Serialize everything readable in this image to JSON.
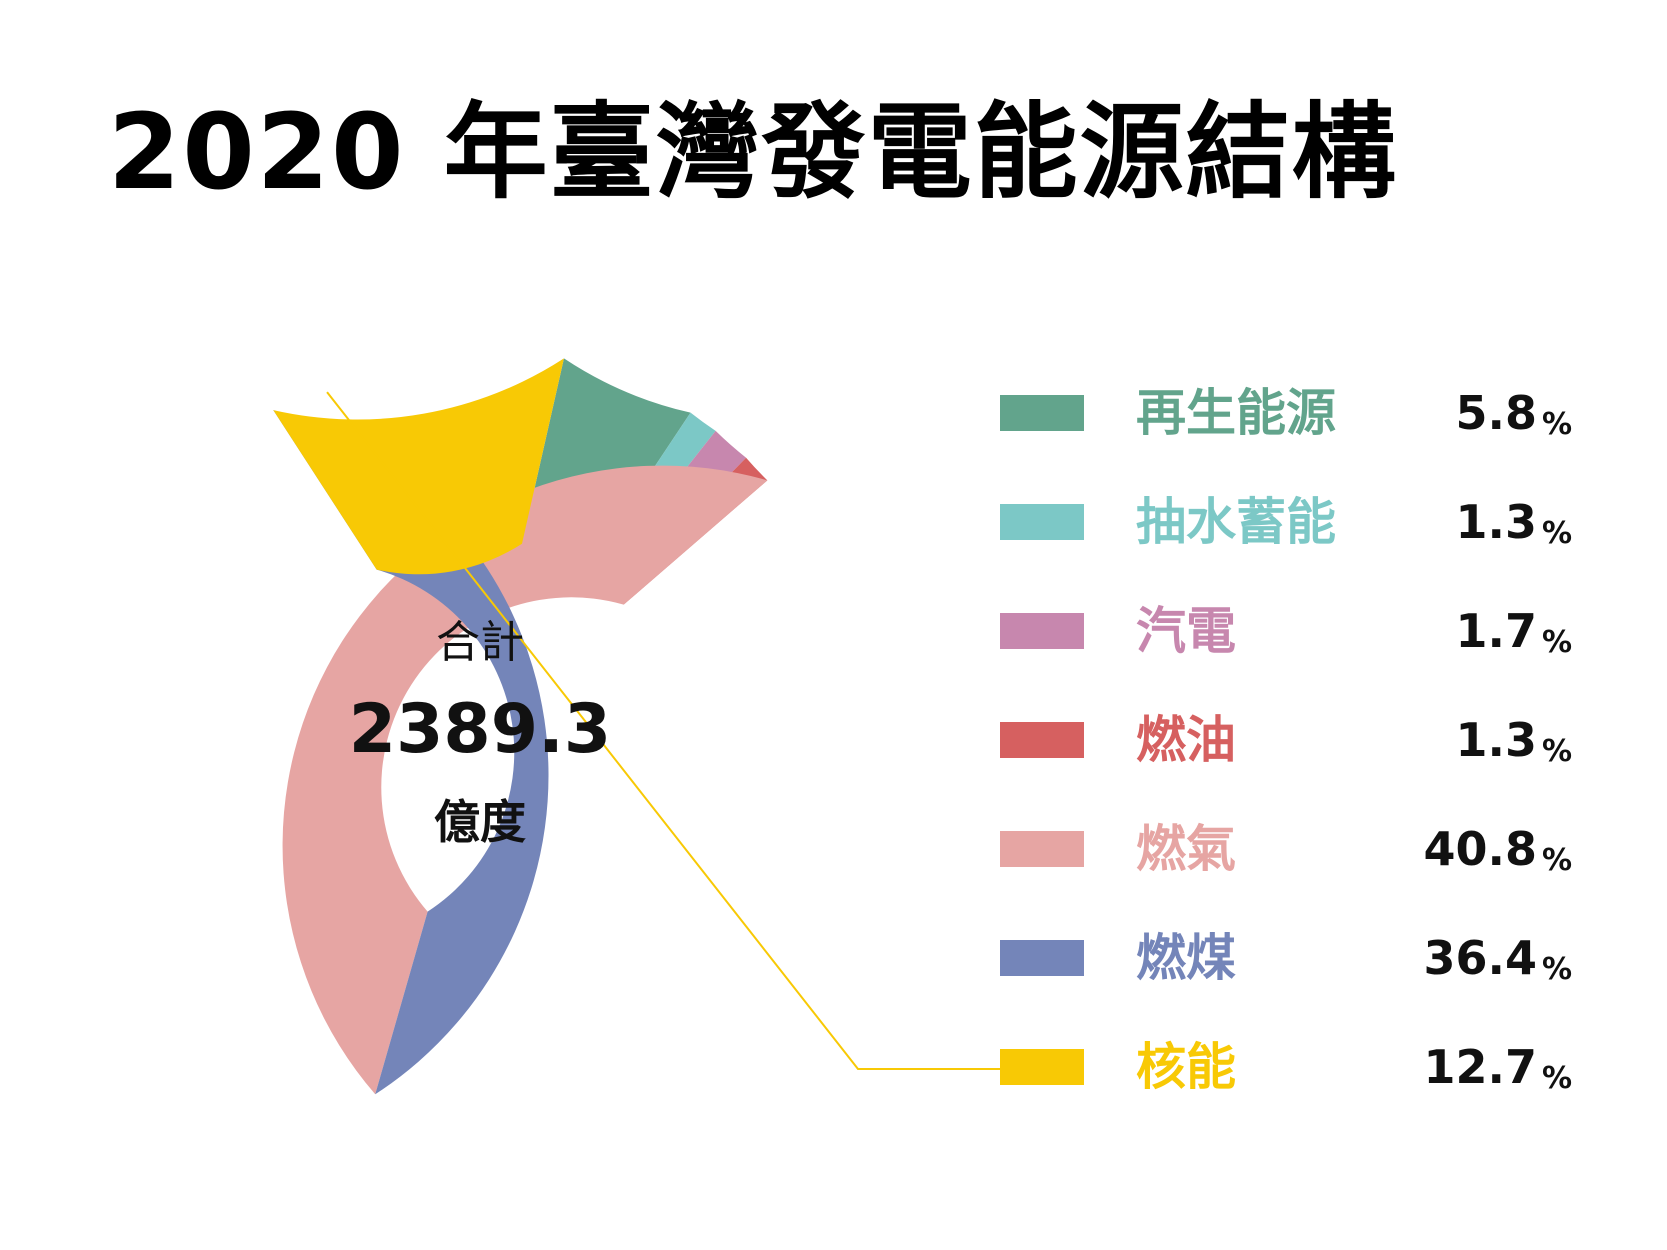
{
  "title": "2020 年臺灣發電能源結構",
  "center": {
    "label": "合計",
    "value": "2389.3",
    "unit": "億度"
  },
  "percent_sign": "%",
  "chart_data": {
    "type": "pie",
    "title": "2020 年臺灣發電能源結構",
    "total": 2389.3,
    "total_unit": "億度",
    "slices": [
      {
        "name": "再生能源",
        "value": 5.8,
        "label": "5.8",
        "color": "#62a48c"
      },
      {
        "name": "抽水蓄能",
        "value": 1.3,
        "label": "1.3",
        "color": "#7cc8c6"
      },
      {
        "name": "汽電",
        "value": 1.7,
        "label": "1.7",
        "color": "#c787ae"
      },
      {
        "name": "燃油",
        "value": 1.3,
        "label": "1.3",
        "color": "#d66060"
      },
      {
        "name": "燃氣",
        "value": 40.8,
        "label": "40.8",
        "color": "#e6a5a3"
      },
      {
        "name": "燃煤",
        "value": 36.4,
        "label": "36.4",
        "color": "#7485b9"
      },
      {
        "name": "核能",
        "value": 12.7,
        "label": "12.7",
        "color": "#f8c905"
      }
    ],
    "legend_position": "right"
  }
}
